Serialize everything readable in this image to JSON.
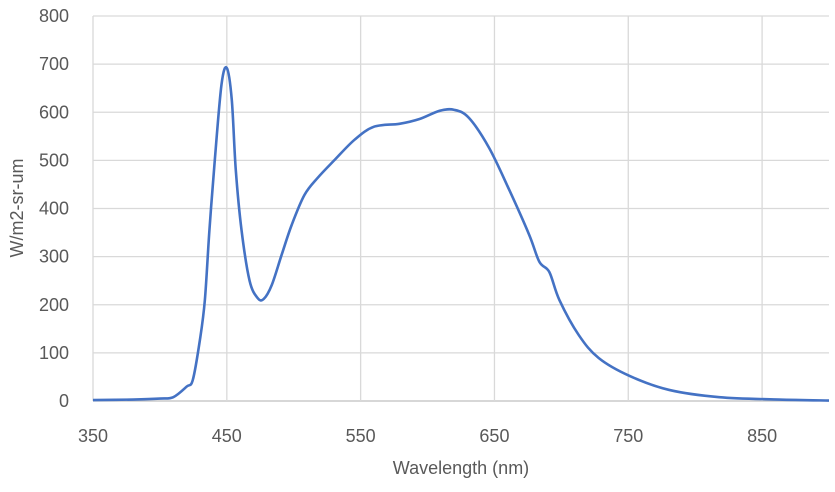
{
  "chart_data": {
    "type": "line",
    "title": "",
    "xlabel": "Wavelength (nm)",
    "ylabel": "W/m2-sr-um",
    "xlim": [
      350,
      900
    ],
    "ylim": [
      0,
      800
    ],
    "xticks": [
      350,
      450,
      550,
      650,
      750,
      850
    ],
    "yticks": [
      0,
      100,
      200,
      300,
      400,
      500,
      600,
      700,
      800
    ],
    "grid": true,
    "legend": "none",
    "series": [
      {
        "name": "Spectral radiance",
        "color": "#4472C4",
        "points": [
          [
            350,
            2
          ],
          [
            380,
            3
          ],
          [
            400,
            5
          ],
          [
            410,
            8
          ],
          [
            420,
            30
          ],
          [
            424.6,
            44
          ],
          [
            429.9,
            127
          ],
          [
            433.6,
            210
          ],
          [
            437,
            355
          ],
          [
            441,
            500
          ],
          [
            446,
            657
          ],
          [
            450,
            692
          ],
          [
            453.7,
            626
          ],
          [
            456.7,
            480
          ],
          [
            461,
            355
          ],
          [
            467,
            250
          ],
          [
            473,
            214
          ],
          [
            477.6,
            212
          ],
          [
            483.6,
            241
          ],
          [
            491,
            304
          ],
          [
            498.5,
            366
          ],
          [
            508,
            428
          ],
          [
            518,
            464
          ],
          [
            530.6,
            501
          ],
          [
            545.5,
            543
          ],
          [
            560,
            570
          ],
          [
            579,
            576
          ],
          [
            594,
            586
          ],
          [
            609,
            603
          ],
          [
            620,
            605
          ],
          [
            631,
            588
          ],
          [
            646,
            526
          ],
          [
            661,
            439
          ],
          [
            676,
            345
          ],
          [
            683.6,
            289
          ],
          [
            691,
            268
          ],
          [
            698.5,
            210
          ],
          [
            713,
            137
          ],
          [
            728,
            89
          ],
          [
            751,
            52
          ],
          [
            780.6,
            23
          ],
          [
            818,
            8
          ],
          [
            862.7,
            3
          ],
          [
            900,
            1
          ]
        ]
      }
    ]
  }
}
